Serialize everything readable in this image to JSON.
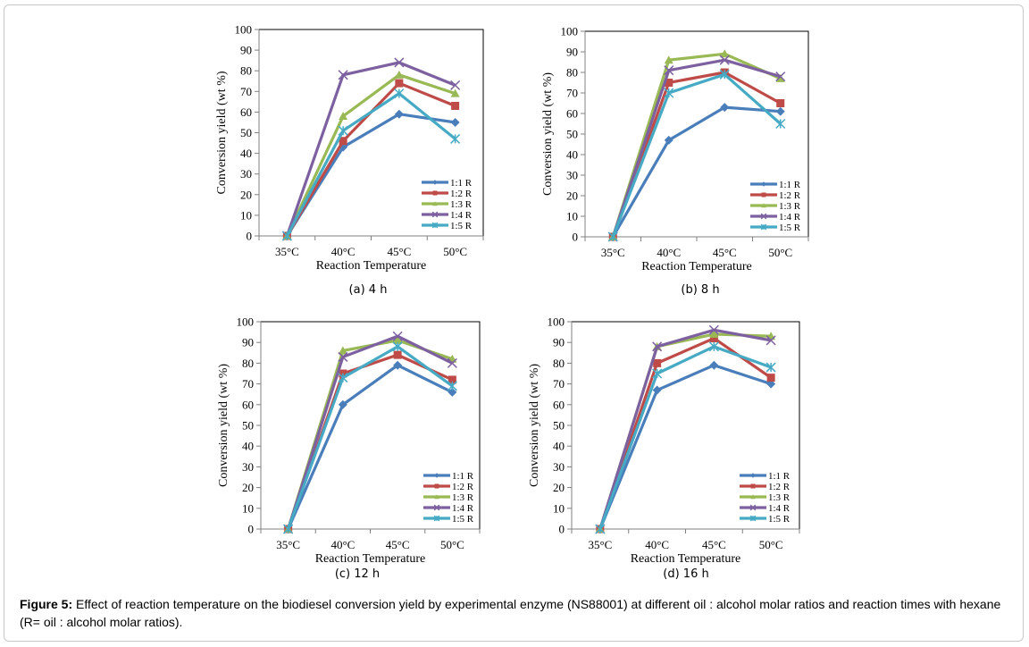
{
  "figure": {
    "caption_label": "Figure 5:",
    "caption_text": " Effect of reaction temperature on the biodiesel conversion yield by experimental enzyme (NS88001) at different oil : alcohol molar ratios and reaction times with hexane (R= oil : alcohol molar ratios)."
  },
  "colors": {
    "1:1 R": "#4a7ebb",
    "1:2 R": "#be4b48",
    "1:3 R": "#98b954",
    "1:4 R": "#7d60a0",
    "1:5 R": "#46aac5"
  },
  "chart_data": [
    {
      "type": "line",
      "panel": "a",
      "subtitle": "(a) 4 h",
      "title": "",
      "xlabel": "Reaction Temperature",
      "ylabel": "Conversion yield (wt %)",
      "categories": [
        "35°C",
        "40°C",
        "45°C",
        "50°C"
      ],
      "ylim": [
        0,
        100
      ],
      "yticks": [
        0,
        10,
        20,
        30,
        40,
        50,
        60,
        70,
        80,
        90,
        100
      ],
      "grid": false,
      "legend_position": "bottom-right",
      "series": [
        {
          "name": "1:1 R",
          "marker": "diamond",
          "values": [
            0,
            43,
            59,
            55
          ]
        },
        {
          "name": "1:2 R",
          "marker": "square",
          "values": [
            0,
            46,
            74,
            63
          ]
        },
        {
          "name": "1:3 R",
          "marker": "triangle",
          "values": [
            0,
            58,
            78,
            69
          ]
        },
        {
          "name": "1:4 R",
          "marker": "x",
          "values": [
            0,
            78,
            84,
            73
          ]
        },
        {
          "name": "1:5 R",
          "marker": "star",
          "values": [
            0,
            51,
            69,
            47
          ]
        }
      ]
    },
    {
      "type": "line",
      "panel": "b",
      "subtitle": "(b) 8 h",
      "title": "",
      "xlabel": "Reaction Temperature",
      "ylabel": "Conversion yield (wt %)",
      "categories": [
        "35°C",
        "40°C",
        "45°C",
        "50°C"
      ],
      "ylim": [
        0,
        100
      ],
      "yticks": [
        0,
        10,
        20,
        30,
        40,
        50,
        60,
        70,
        80,
        90,
        100
      ],
      "grid": false,
      "legend_position": "bottom-right",
      "series": [
        {
          "name": "1:1 R",
          "marker": "diamond",
          "values": [
            0,
            47,
            63,
            61
          ]
        },
        {
          "name": "1:2 R",
          "marker": "square",
          "values": [
            0,
            75,
            80,
            65
          ]
        },
        {
          "name": "1:3 R",
          "marker": "triangle",
          "values": [
            0,
            86,
            89,
            77
          ]
        },
        {
          "name": "1:4 R",
          "marker": "x",
          "values": [
            0,
            81,
            86,
            78
          ]
        },
        {
          "name": "1:5 R",
          "marker": "star",
          "values": [
            0,
            70,
            79,
            55
          ]
        }
      ]
    },
    {
      "type": "line",
      "panel": "c",
      "subtitle": "(c) 12 h",
      "title": "",
      "xlabel": "Reaction Temperature",
      "ylabel": "Conversion yield (wt %)",
      "categories": [
        "35°C",
        "40°C",
        "45°C",
        "50°C"
      ],
      "ylim": [
        0,
        100
      ],
      "yticks": [
        0,
        10,
        20,
        30,
        40,
        50,
        60,
        70,
        80,
        90,
        100
      ],
      "grid": false,
      "legend_position": "bottom-right",
      "series": [
        {
          "name": "1:1 R",
          "marker": "diamond",
          "values": [
            0,
            60,
            79,
            66
          ]
        },
        {
          "name": "1:2 R",
          "marker": "square",
          "values": [
            0,
            75,
            84,
            72
          ]
        },
        {
          "name": "1:3 R",
          "marker": "triangle",
          "values": [
            0,
            86,
            91,
            82
          ]
        },
        {
          "name": "1:4 R",
          "marker": "x",
          "values": [
            0,
            83,
            93,
            80
          ]
        },
        {
          "name": "1:5 R",
          "marker": "star",
          "values": [
            0,
            73,
            88,
            69
          ]
        }
      ]
    },
    {
      "type": "line",
      "panel": "d",
      "subtitle": "(d) 16 h",
      "title": "",
      "xlabel": "Reaction Temperature",
      "ylabel": "Conversion yield (wt %)",
      "categories": [
        "35°C",
        "40°C",
        "45°C",
        "50°C"
      ],
      "ylim": [
        0,
        100
      ],
      "yticks": [
        0,
        10,
        20,
        30,
        40,
        50,
        60,
        70,
        80,
        90,
        100
      ],
      "grid": false,
      "legend_position": "bottom-right",
      "series": [
        {
          "name": "1:1 R",
          "marker": "diamond",
          "values": [
            0,
            67,
            79,
            70
          ]
        },
        {
          "name": "1:2 R",
          "marker": "square",
          "values": [
            0,
            80,
            92,
            73
          ]
        },
        {
          "name": "1:3 R",
          "marker": "triangle",
          "values": [
            0,
            88,
            94,
            93
          ]
        },
        {
          "name": "1:4 R",
          "marker": "x",
          "values": [
            0,
            88,
            96,
            91
          ]
        },
        {
          "name": "1:5 R",
          "marker": "star",
          "values": [
            0,
            75,
            88,
            78
          ]
        }
      ]
    }
  ]
}
